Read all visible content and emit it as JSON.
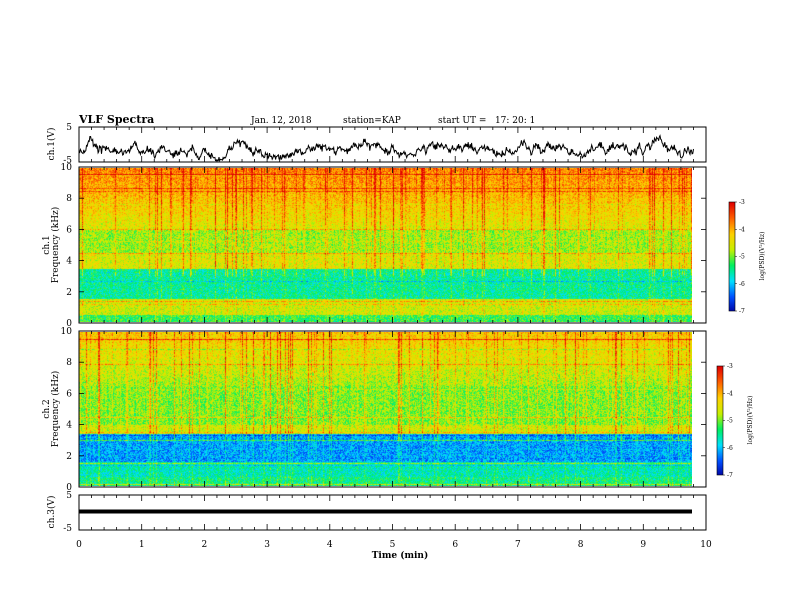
{
  "header": {
    "title": "VLF Spectra",
    "date": "Jan. 12, 2018",
    "station": "station=KAP",
    "start_time": "start UT =   17: 20: 1"
  },
  "chart_data": [
    {
      "type": "line",
      "panel": "ch1-waveform",
      "ylabel": "ch.1(V)",
      "ylim": [
        -5,
        5
      ],
      "yticks": [
        "5",
        "-5"
      ],
      "xlim": [
        0,
        10
      ],
      "series_note": "noisy waveform oscillating mostly between -4 and 2 V over 0–9.8 min"
    },
    {
      "type": "heatmap",
      "panel": "ch1-spectrogram",
      "ylabel_top": "ch.1",
      "ylabel": "Frequency (kHz)",
      "ylim": [
        0,
        10
      ],
      "yticks": [
        "0",
        "2",
        "4",
        "6",
        "8",
        "10"
      ],
      "xlim": [
        0,
        9.8
      ],
      "colorbar": {
        "label": "log(PSD)(V²/Hz)",
        "range": [
          -7,
          -3
        ],
        "ticks": [
          "-3",
          "-4",
          "-5",
          "-6",
          "-7"
        ]
      }
    },
    {
      "type": "heatmap",
      "panel": "ch2-spectrogram",
      "ylabel_top": "ch.2",
      "ylabel": "Frequency (kHz)",
      "ylim": [
        0,
        10
      ],
      "yticks": [
        "0",
        "2",
        "4",
        "6",
        "8",
        "10"
      ],
      "xlim": [
        0,
        9.8
      ],
      "colorbar": {
        "label": "log(PSD)(V²/Hz)",
        "range": [
          -7,
          -3
        ],
        "ticks": [
          "-3",
          "-4",
          "-5",
          "-6",
          "-7"
        ]
      }
    },
    {
      "type": "line",
      "panel": "ch3-waveform",
      "ylabel": "ch.3(V)",
      "ylim": [
        -5,
        5
      ],
      "yticks": [
        "5",
        "-5"
      ],
      "xlim": [
        0,
        10
      ],
      "series_note": "flat thick line at about 0 V"
    }
  ],
  "xaxis": {
    "label": "Time (min)",
    "ticks": [
      "0",
      "1",
      "2",
      "3",
      "4",
      "5",
      "6",
      "7",
      "8",
      "9",
      "10"
    ],
    "range": [
      0,
      10
    ]
  },
  "colors": {
    "cmap": [
      "#0000a0",
      "#0050ff",
      "#00e0ff",
      "#00f060",
      "#c8f000",
      "#ffd000",
      "#ff6000",
      "#e00000",
      "#ffffff"
    ]
  }
}
